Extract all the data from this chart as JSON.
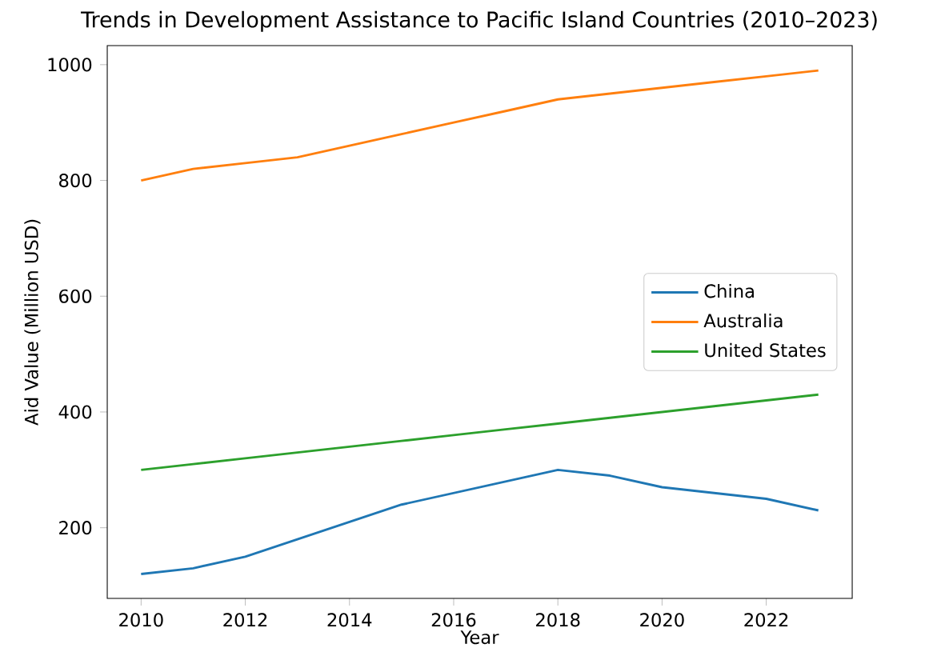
{
  "chart_data": {
    "type": "line",
    "title": "Trends in Development Assistance to Pacific Island Countries (2010–2023)",
    "xlabel": "Year",
    "ylabel": "Aid Value (Million USD)",
    "x": [
      2010,
      2011,
      2012,
      2013,
      2014,
      2015,
      2016,
      2017,
      2018,
      2019,
      2020,
      2021,
      2022,
      2023
    ],
    "series": [
      {
        "name": "China",
        "color": "#1f77b4",
        "values": [
          120,
          130,
          150,
          180,
          210,
          240,
          260,
          280,
          300,
          290,
          270,
          260,
          250,
          230
        ]
      },
      {
        "name": "Australia",
        "color": "#ff7f0e",
        "values": [
          800,
          820,
          830,
          840,
          860,
          880,
          900,
          920,
          940,
          950,
          960,
          970,
          980,
          990
        ]
      },
      {
        "name": "United States",
        "color": "#2ca02c",
        "values": [
          300,
          310,
          320,
          330,
          340,
          350,
          360,
          370,
          380,
          390,
          400,
          410,
          420,
          430
        ]
      }
    ],
    "xlim": [
      2009.35,
      2023.65
    ],
    "ylim": [
      78,
      1033
    ],
    "xticks": [
      2010,
      2012,
      2014,
      2016,
      2018,
      2020,
      2022
    ],
    "yticks": [
      200,
      400,
      600,
      800,
      1000
    ],
    "legend": "right",
    "marker": "none",
    "line_style": "solid"
  }
}
